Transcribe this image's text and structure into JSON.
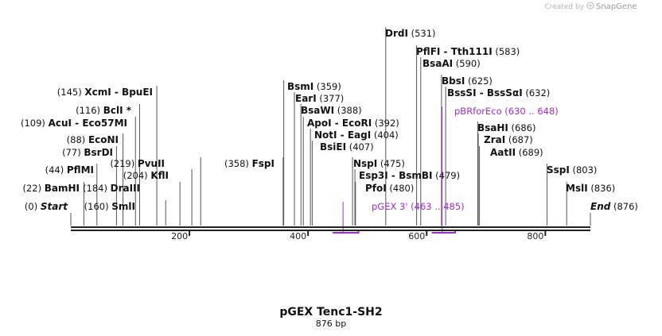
{
  "map": {
    "name": "pGEX Tenc1-SH2",
    "length_label": "876 bp",
    "length": 876,
    "credit_prefix": "Created by",
    "credit_brand": "SnapGene",
    "axis_ticks": [
      {
        "value": 200,
        "label": "200"
      },
      {
        "value": 400,
        "label": "400"
      },
      {
        "value": 600,
        "label": "600"
      },
      {
        "value": 800,
        "label": "800"
      }
    ],
    "ends": [
      {
        "name": "Start",
        "pos_label": "(0)",
        "pos": 0
      },
      {
        "name": "End",
        "pos_label": "(876)",
        "pos": 876
      }
    ],
    "sites": [
      {
        "id": "bamhi",
        "name": "BamHI",
        "pos_label": "(22)",
        "pos": 22,
        "side": "left"
      },
      {
        "id": "pflmi",
        "name": "PflMI",
        "pos_label": "(44)",
        "pos": 44,
        "side": "left"
      },
      {
        "id": "bsrdi",
        "name": "BsrDI",
        "pos_label": "(77)",
        "pos": 77,
        "side": "left"
      },
      {
        "id": "econi",
        "name": "EcoNI",
        "pos_label": "(88)",
        "pos": 88,
        "side": "left"
      },
      {
        "id": "acui",
        "name": "AcuI - Eco57MI",
        "pos_label": "(109)",
        "pos": 109,
        "side": "left"
      },
      {
        "id": "bcli",
        "name": "BclI *",
        "pos_label": "(116)",
        "pos": 116,
        "side": "left"
      },
      {
        "id": "xcmi",
        "name": "XcmI - BpuEI",
        "pos_label": "(145)",
        "pos": 145,
        "side": "left"
      },
      {
        "id": "smli",
        "name": "SmlI",
        "pos_label": "(160)",
        "pos": 160,
        "side": "left"
      },
      {
        "id": "draiii",
        "name": "DraIII",
        "pos_label": "(184)",
        "pos": 184,
        "side": "left"
      },
      {
        "id": "kfli",
        "name": "KflI",
        "pos_label": "(204)",
        "pos": 204,
        "side": "left"
      },
      {
        "id": "pvuii",
        "name": "PvuII",
        "pos_label": "(219)",
        "pos": 219,
        "side": "left"
      },
      {
        "id": "fspi",
        "name": "FspI",
        "pos_label": "(358)",
        "pos": 358,
        "side": "left"
      },
      {
        "id": "bsmi",
        "name": "BsmI",
        "pos_label": "(359)",
        "pos": 359,
        "side": "right"
      },
      {
        "id": "eari",
        "name": "EarI",
        "pos_label": "(377)",
        "pos": 377,
        "side": "right"
      },
      {
        "id": "bsawi",
        "name": "BsaWI",
        "pos_label": "(388)",
        "pos": 388,
        "side": "right"
      },
      {
        "id": "apoi",
        "name": "ApoI - EcoRI",
        "pos_label": "(392)",
        "pos": 392,
        "side": "right"
      },
      {
        "id": "noti",
        "name": "NotI - EagI",
        "pos_label": "(404)",
        "pos": 404,
        "side": "right"
      },
      {
        "id": "bsiei",
        "name": "BsiEI",
        "pos_label": "(407)",
        "pos": 407,
        "side": "right"
      },
      {
        "id": "nspi",
        "name": "NspI",
        "pos_label": "(475)",
        "pos": 475,
        "side": "right"
      },
      {
        "id": "esp3i",
        "name": "Esp3I - BsmBI",
        "pos_label": "(479)",
        "pos": 479,
        "side": "right"
      },
      {
        "id": "pfoi",
        "name": "PfoI",
        "pos_label": "(480)",
        "pos": 480,
        "side": "right"
      },
      {
        "id": "drdi",
        "name": "DrdI",
        "pos_label": "(531)",
        "pos": 531,
        "side": "right"
      },
      {
        "id": "pflfi",
        "name": "PflFI - Tth111I",
        "pos_label": "(583)",
        "pos": 583,
        "side": "right"
      },
      {
        "id": "bsaai",
        "name": "BsaAI",
        "pos_label": "(590)",
        "pos": 590,
        "side": "right"
      },
      {
        "id": "bbsi",
        "name": "BbsI",
        "pos_label": "(625)",
        "pos": 625,
        "side": "right"
      },
      {
        "id": "bsssi",
        "name": "BssSI - BssSαI",
        "pos_label": "(632)",
        "pos": 632,
        "side": "right"
      },
      {
        "id": "bsahi",
        "name": "BsaHI",
        "pos_label": "(686)",
        "pos": 686,
        "side": "right"
      },
      {
        "id": "zrai",
        "name": "ZraI",
        "pos_label": "(687)",
        "pos": 687,
        "side": "right"
      },
      {
        "id": "aatii",
        "name": "AatII",
        "pos_label": "(689)",
        "pos": 689,
        "side": "right"
      },
      {
        "id": "sspi",
        "name": "SspI",
        "pos_label": "(803)",
        "pos": 803,
        "side": "right"
      },
      {
        "id": "msli",
        "name": "MslI",
        "pos_label": "(836)",
        "pos": 836,
        "side": "right"
      }
    ],
    "primers": [
      {
        "id": "pgex3",
        "name": "pGEX 3'",
        "range_label": "(463 .. 485)",
        "start": 463,
        "end": 485,
        "direction": "reverse",
        "color": "#a12ad6"
      },
      {
        "id": "pbrforeco",
        "name": "pBRforEco",
        "range_label": "(630 .. 648)",
        "start": 630,
        "end": 648,
        "direction": "reverse",
        "color": "#a12ad6"
      }
    ]
  }
}
